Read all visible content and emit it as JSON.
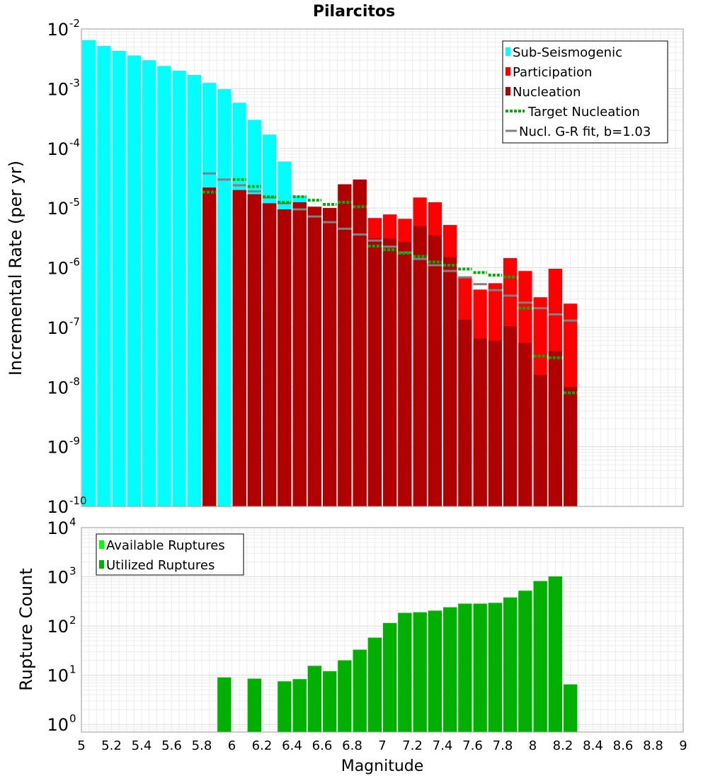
{
  "title": "Pilarcitos",
  "chart_data": [
    {
      "type": "bar",
      "panel": "top",
      "title": "Pilarcitos",
      "ylabel": "Incremental Rate (per yr)",
      "xlabel": "",
      "xlim": [
        5,
        9
      ],
      "ylim": [
        1e-10,
        0.01
      ],
      "yscale": "log",
      "grid": true,
      "legend_position": "top-right",
      "y_ticks": [
        {
          "base": "10",
          "exp": "-10"
        },
        {
          "base": "10",
          "exp": "-9"
        },
        {
          "base": "10",
          "exp": "-8"
        },
        {
          "base": "10",
          "exp": "-7"
        },
        {
          "base": "10",
          "exp": "-6"
        },
        {
          "base": "10",
          "exp": "-5"
        },
        {
          "base": "10",
          "exp": "-4"
        },
        {
          "base": "10",
          "exp": "-3"
        },
        {
          "base": "10",
          "exp": "-2"
        }
      ],
      "series": [
        {
          "name": "Sub-Seismogenic",
          "kind": "bar",
          "color": "#00ffff",
          "x": [
            5.05,
            5.15,
            5.25,
            5.35,
            5.45,
            5.55,
            5.65,
            5.75,
            5.85,
            5.95,
            6.05,
            6.15,
            6.25,
            6.35,
            6.45
          ],
          "values": [
            0.0065,
            0.0052,
            0.0043,
            0.0036,
            0.003,
            0.0024,
            0.002,
            0.0017,
            0.00125,
            0.00098,
            0.00058,
            0.0003,
            0.00017,
            6e-05,
            1.6e-05
          ]
        },
        {
          "name": "Participation",
          "kind": "bar",
          "color": "#ff0000",
          "x": [
            5.85,
            6.05,
            6.15,
            6.25,
            6.35,
            6.45,
            6.55,
            6.65,
            6.75,
            6.85,
            6.95,
            7.05,
            7.15,
            7.25,
            7.35,
            7.45,
            7.55,
            7.65,
            7.75,
            7.85,
            7.95,
            8.05,
            8.15,
            8.25
          ],
          "values": [
            2.2e-05,
            2e-05,
            1.7e-05,
            1.2e-05,
            9.5e-06,
            1.25e-05,
            1.05e-05,
            1e-05,
            2.5e-05,
            3e-05,
            6.8e-06,
            7.8e-06,
            6.6e-06,
            1.5e-05,
            1.25e-05,
            5.2e-06,
            7e-07,
            4.3e-07,
            5.5e-07,
            1.45e-06,
            8.8e-07,
            3.2e-07,
            9.6e-07,
            2.5e-07
          ]
        },
        {
          "name": "Nucleation",
          "kind": "bar",
          "color": "#b00000",
          "x": [
            5.85,
            6.05,
            6.15,
            6.25,
            6.35,
            6.45,
            6.55,
            6.65,
            6.75,
            6.85,
            6.95,
            7.05,
            7.15,
            7.25,
            7.35,
            7.45,
            7.55,
            7.65,
            7.75,
            7.85,
            7.95,
            8.05,
            8.15,
            8.25
          ],
          "values": [
            2.2e-05,
            2e-05,
            1.7e-05,
            1.2e-05,
            9.5e-06,
            1.25e-05,
            1.05e-05,
            1e-05,
            2.5e-05,
            3e-05,
            3.1e-06,
            3.1e-06,
            2.7e-06,
            5e-06,
            3.5e-06,
            1.5e-06,
            1.35e-07,
            6.5e-08,
            6e-08,
            1.05e-07,
            5.5e-08,
            1.6e-08,
            4e-08,
            1e-08
          ]
        },
        {
          "name": "Target Nucleation",
          "kind": "segment",
          "color": "#00b000",
          "style": "dotted",
          "x": [
            5.85,
            6.05,
            6.15,
            6.25,
            6.35,
            6.45,
            6.55,
            6.65,
            6.75,
            6.85,
            6.95,
            7.05,
            7.15,
            7.25,
            7.35,
            7.45,
            7.55,
            7.65,
            7.75,
            7.85,
            7.95,
            8.05,
            8.15,
            8.25
          ],
          "values": [
            1.85e-05,
            3e-05,
            2.3e-05,
            1.55e-05,
            1.25e-05,
            1.55e-05,
            1.35e-05,
            1.15e-05,
            1.25e-05,
            1.05e-05,
            2.3e-06,
            2e-06,
            1.75e-06,
            1.55e-06,
            1.25e-06,
            1.1e-06,
            9.5e-07,
            8.3e-07,
            7.5e-07,
            7e-07,
            2.1e-07,
            3.3e-08,
            3.1e-08,
            8e-09
          ]
        },
        {
          "name": "Nucl. G-R fit, b=1.03",
          "kind": "segment",
          "color": "#808080",
          "style": "solid",
          "x": [
            5.85,
            5.95,
            6.05,
            6.15,
            6.25,
            6.35,
            6.45,
            6.55,
            6.65,
            6.75,
            6.85,
            6.95,
            7.05,
            7.15,
            7.25,
            7.35,
            7.45,
            7.55,
            7.65,
            7.75,
            7.85,
            7.95,
            8.05,
            8.15,
            8.25
          ],
          "values": [
            3.8e-05,
            3e-05,
            2.4e-05,
            1.9e-05,
            1.5e-05,
            1.2e-05,
            9.5e-06,
            7.2e-06,
            5.8e-06,
            4.5e-06,
            3.6e-06,
            2.85e-06,
            2.25e-06,
            1.8e-06,
            1.4e-06,
            1.1e-06,
            8.8e-07,
            6.9e-07,
            5.3e-07,
            4.2e-07,
            3.4e-07,
            2.6e-07,
            2.1e-07,
            1.65e-07,
            1.3e-07
          ]
        }
      ]
    },
    {
      "type": "bar",
      "panel": "bottom",
      "ylabel": "Rupture Count",
      "xlabel": "Magnitude",
      "xlim": [
        5,
        9
      ],
      "ylim": [
        0.7,
        10000
      ],
      "yscale": "log",
      "grid": true,
      "legend_position": "top-left",
      "x_ticks": [
        "5",
        "5.2",
        "5.4",
        "5.6",
        "5.8",
        "6",
        "6.2",
        "6.4",
        "6.6",
        "6.8",
        "7",
        "7.2",
        "7.4",
        "7.6",
        "7.8",
        "8",
        "8.2",
        "8.4",
        "8.6",
        "8.8",
        "9"
      ],
      "y_ticks": [
        {
          "base": "10",
          "exp": "0"
        },
        {
          "base": "10",
          "exp": "1"
        },
        {
          "base": "10",
          "exp": "2"
        },
        {
          "base": "10",
          "exp": "3"
        },
        {
          "base": "10",
          "exp": "4"
        }
      ],
      "series": [
        {
          "name": "Available Ruptures",
          "kind": "bar",
          "color": "#00ff00",
          "x": [
            5.95,
            6.15,
            6.35,
            6.45,
            6.55,
            6.65,
            6.75,
            6.85,
            6.95,
            7.05,
            7.15,
            7.25,
            7.35,
            7.45,
            7.55,
            7.65,
            7.75,
            7.85,
            7.95,
            8.05,
            8.15,
            8.25
          ],
          "values": [
            9,
            8.5,
            7.5,
            8.3,
            15.5,
            12,
            20,
            33,
            58,
            115,
            185,
            190,
            205,
            240,
            285,
            285,
            295,
            380,
            520,
            820,
            1020,
            6.5
          ]
        },
        {
          "name": "Utilized Ruptures",
          "kind": "bar",
          "color": "#00b000",
          "x": [
            5.95,
            6.15,
            6.35,
            6.45,
            6.55,
            6.65,
            6.75,
            6.85,
            6.95,
            7.05,
            7.15,
            7.25,
            7.35,
            7.45,
            7.55,
            7.65,
            7.75,
            7.85,
            7.95,
            8.05,
            8.15,
            8.25
          ],
          "values": [
            9,
            8.5,
            7.5,
            8.3,
            15.5,
            12,
            20,
            33,
            58,
            115,
            185,
            190,
            205,
            240,
            285,
            285,
            295,
            380,
            520,
            820,
            1020,
            6.5
          ]
        }
      ]
    }
  ]
}
